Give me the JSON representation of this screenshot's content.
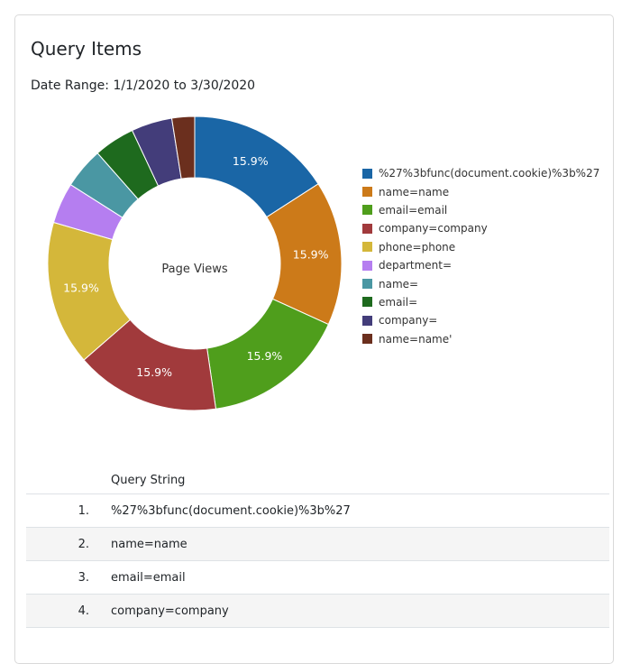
{
  "card": {
    "title": "Query Items",
    "date_range": "Date Range: 1/1/2020 to 3/30/2020"
  },
  "chart_data": {
    "type": "pie",
    "donut": true,
    "center_label": "Page Views",
    "legend_position": "right",
    "categories": [
      "%27%3bfunc(document.cookie)%3b%27",
      "name=name",
      "email=email",
      "company=company",
      "phone=phone",
      "department=",
      "name=",
      "email=",
      "company=",
      "name=name'"
    ],
    "values": [
      15.9,
      15.9,
      15.9,
      15.9,
      15.9,
      4.5,
      4.5,
      4.5,
      4.5,
      2.5
    ],
    "data_labels": [
      "15.9%",
      "15.9%",
      "15.9%",
      "15.9%",
      "15.9%",
      "",
      "",
      "",
      "",
      ""
    ],
    "colors": [
      "#1a66a6",
      "#cc7a19",
      "#4f9e1c",
      "#a13a3c",
      "#d4b73a",
      "#b57ef0",
      "#4a97a3",
      "#1e6a1e",
      "#433d7a",
      "#6b2f1e"
    ]
  },
  "table": {
    "header": "Query String",
    "rows": [
      {
        "num": "1.",
        "query": "%27%3bfunc(document.cookie)%3b%27"
      },
      {
        "num": "2.",
        "query": "name=name"
      },
      {
        "num": "3.",
        "query": "email=email"
      },
      {
        "num": "4.",
        "query": "company=company"
      }
    ]
  }
}
